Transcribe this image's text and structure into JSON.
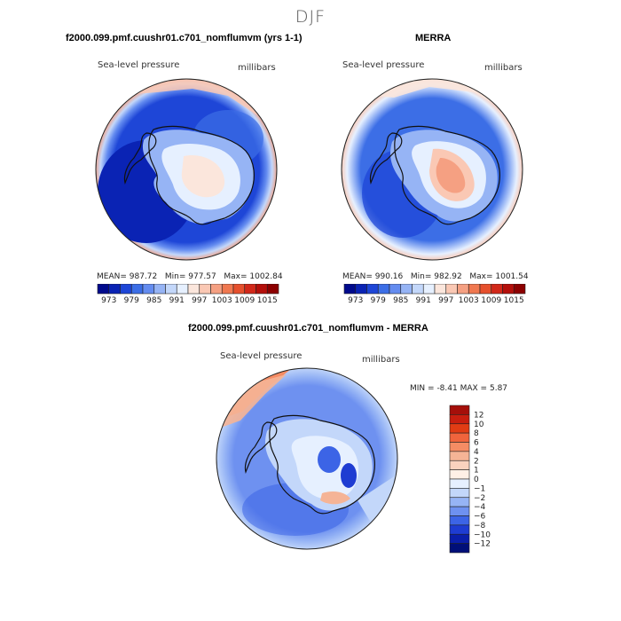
{
  "season": "DJF",
  "chart_data": [
    {
      "type": "heatmap",
      "title": "f2000.099.pmf.cuushr01.c701_nomflumvm (yrs 1-1)",
      "variable_label": "Sea-level pressure",
      "units": "millibars",
      "stats": {
        "mean_label": "MEAN=",
        "mean": "987.72",
        "min_label": "Min=",
        "min": "977.57",
        "max_label": "Max=",
        "max": "1002.84"
      },
      "colorbar_ticks": [
        "973",
        "979",
        "985",
        "991",
        "997",
        "1003",
        "1009",
        "1015"
      ],
      "colorbar_colors": [
        "#000a8c",
        "#0a23b4",
        "#1e46d7",
        "#3c6ee6",
        "#648cf0",
        "#96b4f5",
        "#c3d7fa",
        "#e6f0ff",
        "#fbe6dc",
        "#fac8b4",
        "#f5a082",
        "#f07850",
        "#e6502d",
        "#d22819",
        "#b40f0a",
        "#8c0000"
      ]
    },
    {
      "type": "heatmap",
      "title": "MERRA",
      "variable_label": "Sea-level pressure",
      "units": "millibars",
      "stats": {
        "mean_label": "MEAN=",
        "mean": "990.16",
        "min_label": "Min=",
        "min": "982.92",
        "max_label": "Max=",
        "max": "1001.54"
      },
      "colorbar_ticks": [
        "973",
        "979",
        "985",
        "991",
        "997",
        "1003",
        "1009",
        "1015"
      ],
      "colorbar_colors": [
        "#000a8c",
        "#0a23b4",
        "#1e46d7",
        "#3c6ee6",
        "#648cf0",
        "#96b4f5",
        "#c3d7fa",
        "#e6f0ff",
        "#fbe6dc",
        "#fac8b4",
        "#f5a082",
        "#f07850",
        "#e6502d",
        "#d22819",
        "#b40f0a",
        "#8c0000"
      ]
    },
    {
      "type": "heatmap",
      "title": "f2000.099.pmf.cuushr01.c701_nomflumvm - MERRA",
      "variable_label": "Sea-level pressure",
      "units": "millibars",
      "stats": {
        "min_label": "MIN =",
        "min": "-8.41",
        "max_label": "MAX =",
        "max": "5.87"
      },
      "colorbar_ticks": [
        "12",
        "10",
        "8",
        "6",
        "4",
        "2",
        "1",
        "0",
        "−1",
        "−2",
        "−4",
        "−6",
        "−8",
        "−10",
        "−12"
      ],
      "colorbar_colors": [
        "#a50f0a",
        "#c81e0f",
        "#e13c14",
        "#f0643c",
        "#f58c64",
        "#f5b496",
        "#fad2be",
        "#fff0e6",
        "#e6f0ff",
        "#c3d7fa",
        "#96b4f5",
        "#6e91f0",
        "#3c64e6",
        "#1e3cd2",
        "#0a1eaa",
        "#000f78"
      ]
    }
  ]
}
